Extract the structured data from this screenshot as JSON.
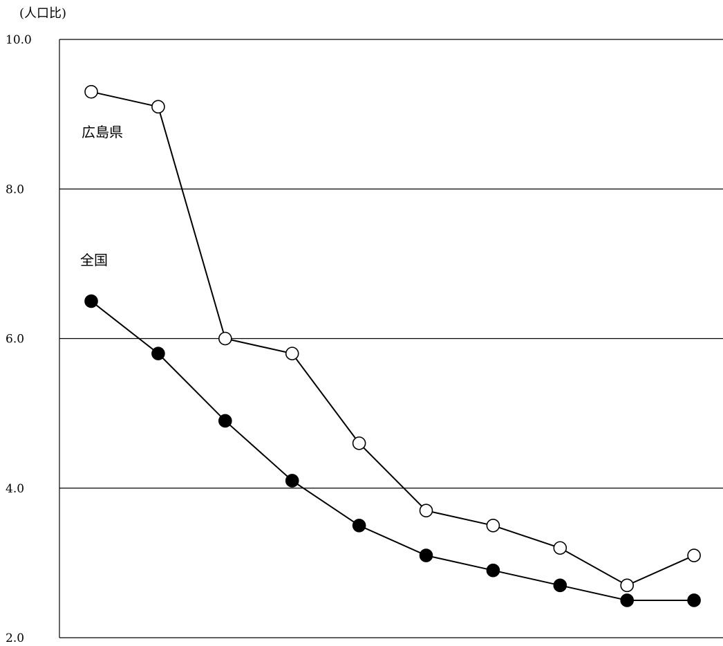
{
  "chart_data": {
    "type": "line",
    "ylabel": "(人口比)",
    "ylim": [
      2.0,
      10.0
    ],
    "y_ticks": [
      "10.0",
      "8.0",
      "6.0",
      "4.0",
      "2.0"
    ],
    "x": [
      1,
      2,
      3,
      4,
      5,
      6,
      7,
      8,
      9,
      10
    ],
    "grid": true,
    "series": [
      {
        "name": "広島県",
        "marker": "open-circle",
        "values": [
          9.3,
          9.1,
          6.0,
          5.8,
          4.6,
          3.7,
          3.5,
          3.2,
          2.7,
          3.1
        ]
      },
      {
        "name": "全国",
        "marker": "filled-circle",
        "values": [
          6.5,
          5.8,
          4.9,
          4.1,
          3.5,
          3.1,
          2.9,
          2.7,
          2.5,
          2.5
        ]
      }
    ]
  }
}
